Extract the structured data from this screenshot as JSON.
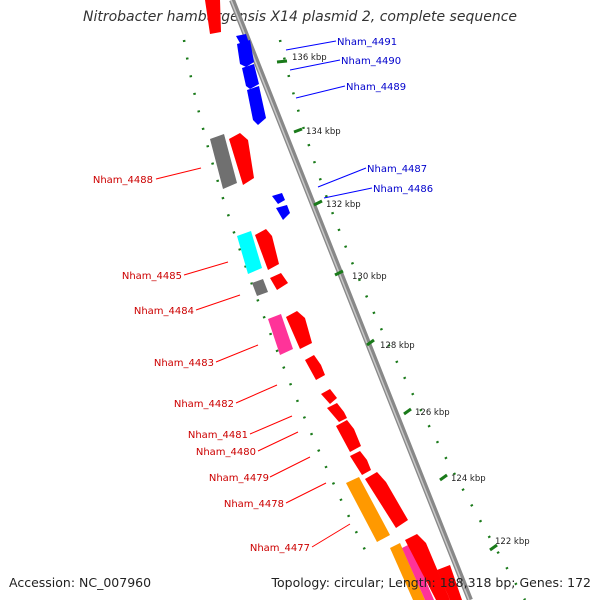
{
  "title": "Nitrobacter hamburgensis X14 plasmid 2, complete sequence",
  "footer": {
    "accession": "Accession: NC_007960",
    "summary": "Topology: circular; Length: 188,318 bp; Genes: 172"
  },
  "colors": {
    "forward_cds": "#ff0000",
    "reverse_cds": "#0000ff",
    "grey_feature": "#707070",
    "cyan_feature": "#00ffff",
    "magenta_feature": "#ff3399",
    "orange_feature": "#ff9900",
    "backbone": "#888888",
    "tick_green": "#1a7a1a"
  },
  "ticks": [
    {
      "label": "136 kbp"
    },
    {
      "label": "134 kbp"
    },
    {
      "label": "132 kbp"
    },
    {
      "label": "130 kbp"
    },
    {
      "label": "128 kbp"
    },
    {
      "label": "126 kbp"
    },
    {
      "label": "124 kbp"
    },
    {
      "label": "122 kbp"
    }
  ],
  "genes_reverse": [
    {
      "label": "Nham_4491"
    },
    {
      "label": "Nham_4490"
    },
    {
      "label": "Nham_4489"
    },
    {
      "label": "Nham_4487"
    },
    {
      "label": "Nham_4486"
    }
  ],
  "genes_forward": [
    {
      "label": "Nham_4488"
    },
    {
      "label": "Nham_4485"
    },
    {
      "label": "Nham_4484"
    },
    {
      "label": "Nham_4483"
    },
    {
      "label": "Nham_4482"
    },
    {
      "label": "Nham_4481"
    },
    {
      "label": "Nham_4480"
    },
    {
      "label": "Nham_4479"
    },
    {
      "label": "Nham_4478"
    },
    {
      "label": "Nham_4477"
    }
  ]
}
